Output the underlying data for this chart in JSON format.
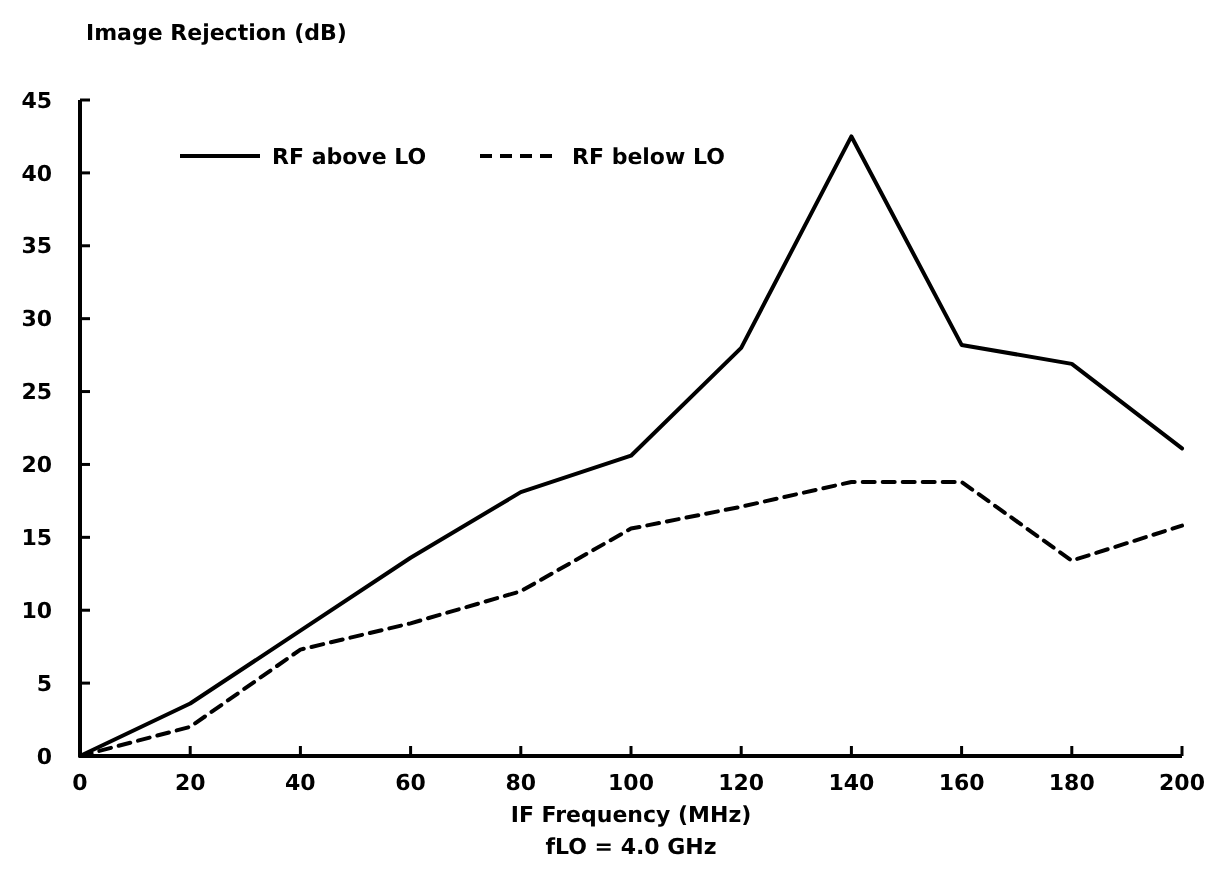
{
  "chart_data": {
    "type": "line",
    "ylabel": "Image Rejection (dB)",
    "xlabel": "IF Frequency (MHz)",
    "annotations": [
      "fLO = 4.0 GHz"
    ],
    "x": [
      0,
      20,
      40,
      60,
      80,
      100,
      120,
      140,
      160,
      180,
      200
    ],
    "series": [
      {
        "name": "RF above LO",
        "color": "#000000",
        "line_style": "solid",
        "values": [
          0,
          3.6,
          8.6,
          13.6,
          18.1,
          20.6,
          28,
          42.5,
          28.2,
          26.9,
          21.1
        ]
      },
      {
        "name": "RF below LO",
        "color": "#000000",
        "line_style": "dashed",
        "values": [
          0,
          2,
          7.3,
          9.1,
          11.3,
          15.6,
          17.1,
          18.8,
          18.8,
          13.4,
          15.8
        ]
      }
    ],
    "xlim": [
      0,
      200
    ],
    "xticks": [
      0,
      20,
      40,
      60,
      80,
      100,
      120,
      140,
      160,
      180,
      200
    ],
    "ylim": [
      0,
      45
    ],
    "yticks": [
      0,
      5,
      10,
      15,
      20,
      25,
      30,
      35,
      40,
      45
    ],
    "grid": false,
    "legend": "top left",
    "marker": "none"
  }
}
